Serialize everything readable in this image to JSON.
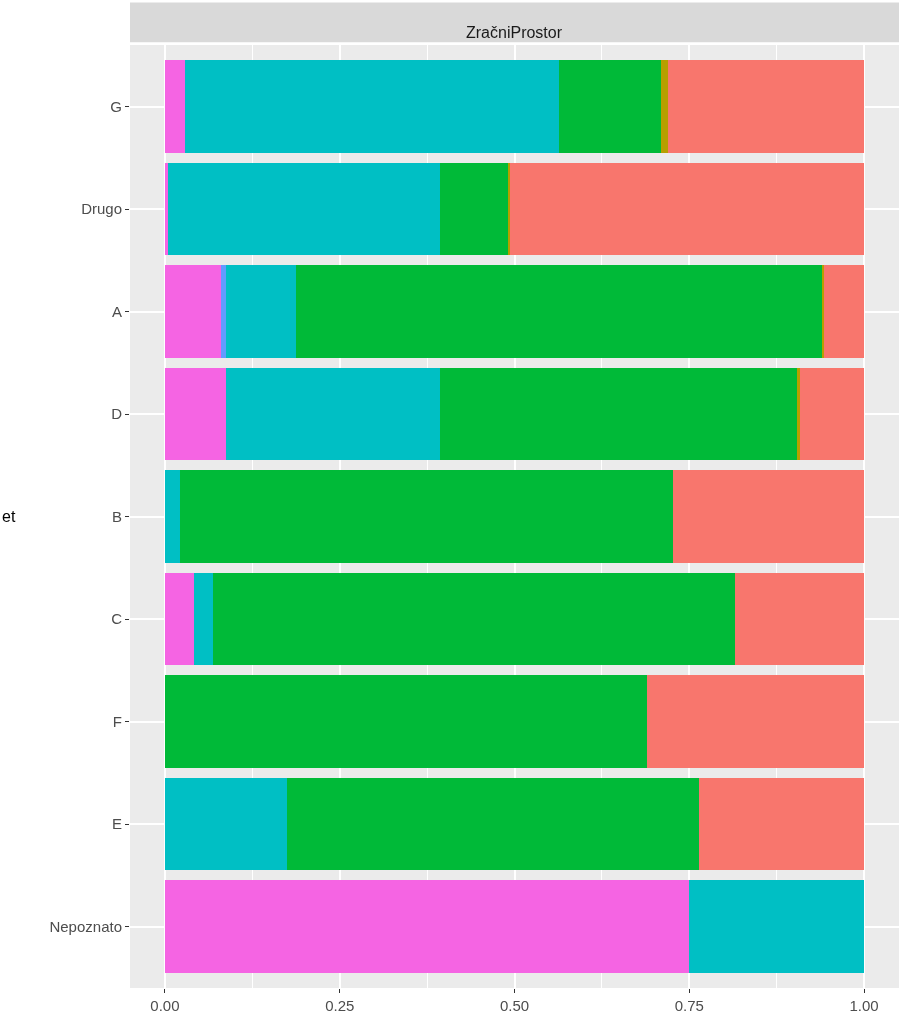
{
  "chart_data": {
    "type": "bar",
    "orientation": "horizontal",
    "stacked": true,
    "title": "ZračniProstor",
    "ylabel": "et",
    "categories": [
      "G",
      "Drugo",
      "A",
      "D",
      "B",
      "C",
      "F",
      "E",
      "Nepoznato"
    ],
    "series": [
      {
        "color": "#f564e3",
        "values": [
          0.029,
          0.004,
          0.08,
          0.088,
          0,
          0.041,
          0,
          0,
          0.75
        ]
      },
      {
        "color": "#619cff",
        "values": [
          0,
          0,
          0.007,
          0,
          0,
          0,
          0,
          0,
          0
        ]
      },
      {
        "color": "#00bfc4",
        "values": [
          0.535,
          0.39,
          0.1,
          0.306,
          0.022,
          0.028,
          0,
          0.174,
          0.25
        ]
      },
      {
        "color": "#00ba38",
        "values": [
          0.146,
          0.098,
          0.754,
          0.51,
          0.705,
          0.746,
          0.69,
          0.59,
          0
        ]
      },
      {
        "color": "#b79f00",
        "values": [
          0.01,
          0.002,
          0.002,
          0.005,
          0,
          0,
          0,
          0,
          0
        ]
      },
      {
        "color": "#f8766d",
        "values": [
          0.28,
          0.506,
          0.057,
          0.091,
          0.273,
          0.185,
          0.31,
          0.236,
          0
        ]
      }
    ],
    "xlim": [
      -0.05,
      1.05
    ],
    "xticks": [
      {
        "value": 0,
        "label": "0.00"
      },
      {
        "value": 0.25,
        "label": "0.25"
      },
      {
        "value": 0.5,
        "label": "0.50"
      },
      {
        "value": 0.75,
        "label": "0.75"
      },
      {
        "value": 1,
        "label": "1.00"
      }
    ],
    "grid": true
  }
}
